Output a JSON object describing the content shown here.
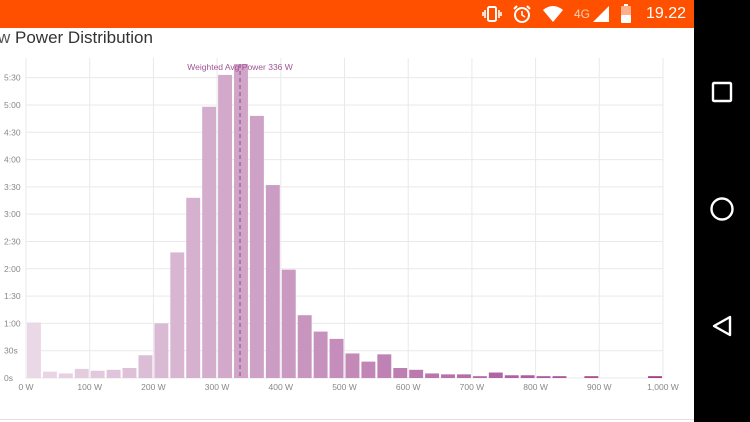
{
  "status_bar": {
    "network_label": "4G",
    "time": "19.22",
    "icons": [
      "vibrate-icon",
      "alarm-icon",
      "wifi-icon",
      "cell-signal-icon",
      "battery-icon"
    ],
    "background": "#ff5000"
  },
  "page": {
    "title_prefix": "w",
    "title_main": "Power Distribution"
  },
  "nav_bar": {
    "buttons": [
      "recents-square-icon",
      "home-circle-icon",
      "back-triangle-icon"
    ]
  },
  "chart_data": {
    "type": "bar",
    "title": "",
    "xlabel": "",
    "ylabel": "",
    "bin_width_w": 25,
    "x_units": "W",
    "y_units": "seconds",
    "xlim": [
      0,
      1000
    ],
    "ylim": [
      0,
      345
    ],
    "x_tick_values": [
      0,
      100,
      200,
      300,
      400,
      500,
      600,
      700,
      800,
      900,
      1000
    ],
    "x_tick_labels": [
      "0 W",
      "100 W",
      "200 W",
      "300 W",
      "400 W",
      "500 W",
      "600 W",
      "700 W",
      "800 W",
      "900 W",
      "1,000 W"
    ],
    "y_tick_values": [
      0,
      30,
      60,
      90,
      120,
      150,
      180,
      210,
      240,
      270,
      300,
      330
    ],
    "y_tick_labels": [
      "0s",
      "30s",
      "1:00",
      "1:30",
      "2:00",
      "2:30",
      "3:00",
      "3:30",
      "4:00",
      "4:30",
      "5:00",
      "5:30"
    ],
    "bins_start_w": [
      0,
      25,
      50,
      75,
      100,
      125,
      150,
      175,
      200,
      225,
      250,
      275,
      300,
      325,
      350,
      375,
      400,
      425,
      450,
      475,
      500,
      525,
      550,
      575,
      600,
      625,
      650,
      675,
      700,
      725,
      750,
      775,
      800,
      825,
      850,
      875,
      900,
      925,
      950,
      975
    ],
    "values_seconds": [
      61,
      7,
      5,
      10,
      8,
      9,
      11,
      25,
      60,
      138,
      198,
      298,
      333,
      354,
      288,
      212,
      119,
      69,
      51,
      43,
      27,
      18,
      26,
      11,
      9,
      5,
      4,
      4,
      2,
      6,
      3,
      3,
      2,
      2,
      0,
      2,
      0,
      0,
      0,
      2
    ],
    "reference_line": {
      "label": "Weighted Avg Power 336 W",
      "value": 336
    },
    "grid": true,
    "colors": {
      "bar_light": "#ead8e6",
      "bar_dark": "#9d3f8d",
      "reference_line": "#a05596",
      "grid": "#e9e9e9",
      "tick_text": "#888888"
    }
  }
}
